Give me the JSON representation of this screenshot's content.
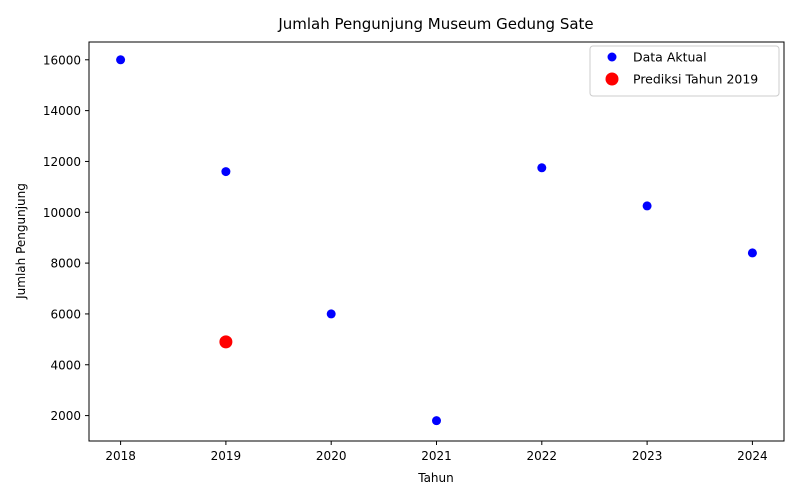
{
  "chart_data": {
    "type": "scatter",
    "title": "Jumlah Pengunjung Museum Gedung Sate",
    "xlabel": "Tahun",
    "ylabel": "Jumlah Pengunjung",
    "xlim": [
      2017.7,
      2024.3
    ],
    "ylim": [
      1000,
      16700
    ],
    "x_ticks": [
      2018,
      2019,
      2020,
      2021,
      2022,
      2023,
      2024
    ],
    "y_ticks": [
      2000,
      4000,
      6000,
      8000,
      10000,
      12000,
      14000,
      16000
    ],
    "grid": false,
    "legend_position": "top-right",
    "series": [
      {
        "name": "Data Aktual",
        "color": "#0000ff",
        "marker": "circle",
        "points": [
          {
            "x": 2018,
            "y": 16000
          },
          {
            "x": 2019,
            "y": 11600
          },
          {
            "x": 2020,
            "y": 6000
          },
          {
            "x": 2021,
            "y": 1800
          },
          {
            "x": 2022,
            "y": 11750
          },
          {
            "x": 2023,
            "y": 10250
          },
          {
            "x": 2024,
            "y": 8400
          }
        ]
      },
      {
        "name": "Prediksi Tahun 2019",
        "color": "#ff0000",
        "marker": "circle-large",
        "points": [
          {
            "x": 2019,
            "y": 4900
          }
        ]
      }
    ]
  }
}
